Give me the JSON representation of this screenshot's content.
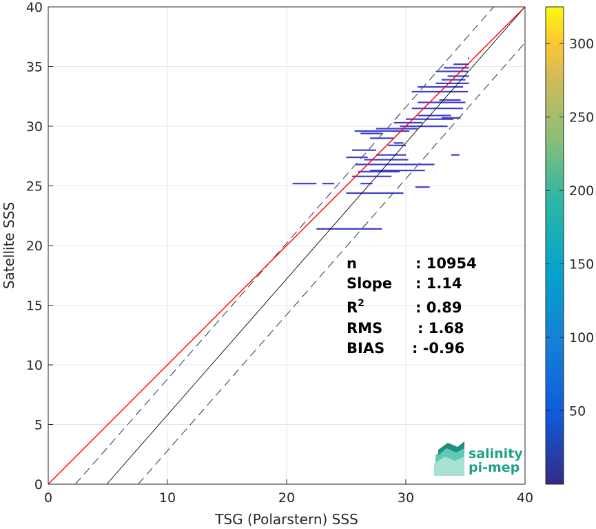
{
  "chart_data": {
    "type": "scatter",
    "title": "",
    "xlabel": "TSG (Polarstern) SSS",
    "ylabel": "Satellite SSS",
    "xlim": [
      0,
      40
    ],
    "ylim": [
      0,
      40
    ],
    "xticks": [
      "0",
      "10",
      "20",
      "30",
      "40"
    ],
    "yticks": [
      "0",
      "5",
      "10",
      "15",
      "20",
      "25",
      "30",
      "35",
      "40"
    ],
    "grid": true,
    "colorbar": {
      "range": [
        0,
        325
      ],
      "ticks": [
        "50",
        "100",
        "150",
        "200",
        "250",
        "300"
      ],
      "colormap": "parula"
    },
    "stats": [
      {
        "label": "n",
        "sup": "",
        "value": ": 10954"
      },
      {
        "label": "Slope",
        "sup": "",
        "value": ": 1.14"
      },
      {
        "label": "R",
        "sup": "2",
        "value": ": 0.89"
      },
      {
        "label": "RMS",
        "sup": "",
        "value": ": 1.68"
      },
      {
        "label": "BIAS",
        "sup": "",
        "value": ": -0.96"
      }
    ],
    "regression_line": {
      "slope": 1.14,
      "intercept": -5.6,
      "color": "#000000"
    },
    "one_to_one_line": {
      "slope": 1,
      "intercept": 0,
      "color": "#ff0000"
    },
    "rms_band_offset": 3.0,
    "points": [
      {
        "x": 25.0,
        "y": 24.4,
        "x2": 29.8
      },
      {
        "x": 26.2,
        "y": 25.2,
        "x2": 27.2
      },
      {
        "x": 20.5,
        "y": 25.2,
        "x2": 22.5
      },
      {
        "x": 23.0,
        "y": 25.2,
        "x2": 24.0
      },
      {
        "x": 25.5,
        "y": 25.8,
        "x2": 28.8
      },
      {
        "x": 26.0,
        "y": 26.2,
        "x2": 29.5
      },
      {
        "x": 27.0,
        "y": 26.3,
        "x2": 31.6
      },
      {
        "x": 25.8,
        "y": 26.8,
        "x2": 32.4
      },
      {
        "x": 26.5,
        "y": 27.2,
        "x2": 30.2
      },
      {
        "x": 25.0,
        "y": 27.4,
        "x2": 26.8
      },
      {
        "x": 27.5,
        "y": 27.6,
        "x2": 30.0
      },
      {
        "x": 33.8,
        "y": 27.6,
        "x2": 34.5
      },
      {
        "x": 25.5,
        "y": 28.0,
        "x2": 27.5
      },
      {
        "x": 28.5,
        "y": 28.4,
        "x2": 30.0
      },
      {
        "x": 29.0,
        "y": 28.6,
        "x2": 29.8
      },
      {
        "x": 27.0,
        "y": 29.0,
        "x2": 29.0
      },
      {
        "x": 26.2,
        "y": 29.4,
        "x2": 28.0
      },
      {
        "x": 25.7,
        "y": 29.6,
        "x2": 30.3
      },
      {
        "x": 27.5,
        "y": 29.8,
        "x2": 31.0
      },
      {
        "x": 29.5,
        "y": 30.0,
        "x2": 33.5
      },
      {
        "x": 29.0,
        "y": 30.3,
        "x2": 31.4
      },
      {
        "x": 30.0,
        "y": 30.6,
        "x2": 34.0
      },
      {
        "x": 31.0,
        "y": 30.9,
        "x2": 33.8
      },
      {
        "x": 33.0,
        "y": 30.7,
        "x2": 34.6
      },
      {
        "x": 30.5,
        "y": 31.5,
        "x2": 34.8
      },
      {
        "x": 31.0,
        "y": 32.0,
        "x2": 35.0
      },
      {
        "x": 32.8,
        "y": 32.2,
        "x2": 34.6
      },
      {
        "x": 30.5,
        "y": 32.9,
        "x2": 35.2
      },
      {
        "x": 31.0,
        "y": 33.3,
        "x2": 34.8
      },
      {
        "x": 32.5,
        "y": 33.6,
        "x2": 35.3
      },
      {
        "x": 33.0,
        "y": 33.9,
        "x2": 35.0
      },
      {
        "x": 33.5,
        "y": 34.2,
        "x2": 35.3
      },
      {
        "x": 32.5,
        "y": 34.6,
        "x2": 35.2
      },
      {
        "x": 33.2,
        "y": 34.9,
        "x2": 35.3
      },
      {
        "x": 34.0,
        "y": 35.2,
        "x2": 35.3
      },
      {
        "x": 35.2,
        "y": 35.7,
        "x2": 35.3
      },
      {
        "x": 22.5,
        "y": 21.4,
        "x2": 28.0
      },
      {
        "x": 30.8,
        "y": 24.9,
        "x2": 32.0
      }
    ]
  },
  "logo": {
    "line1": "salinity",
    "line2": "pi-mep"
  }
}
